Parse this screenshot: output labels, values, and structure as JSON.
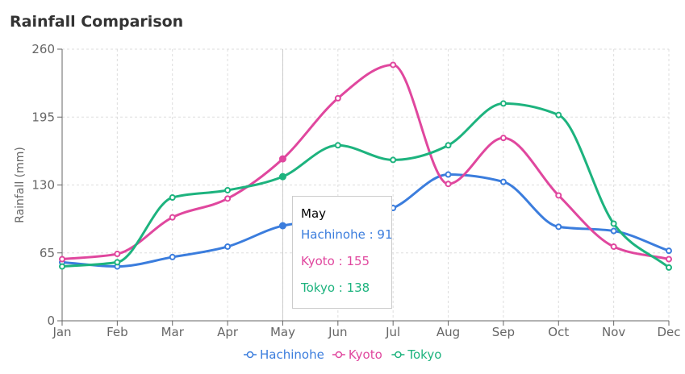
{
  "chart_data": {
    "type": "line",
    "title": "Rainfall Comparison",
    "xlabel": "",
    "ylabel": "Rainfall (mm)",
    "categories": [
      "Jan",
      "Feb",
      "Mar",
      "Apr",
      "May",
      "Jun",
      "Jul",
      "Aug",
      "Sep",
      "Oct",
      "Nov",
      "Dec"
    ],
    "ylim": [
      0,
      260
    ],
    "yticks": [
      0,
      65,
      130,
      195,
      260
    ],
    "grid": true,
    "legend_position": "bottom",
    "smooth": true,
    "series": [
      {
        "name": "Hachinohe",
        "color": "#3b7ddd",
        "values": [
          56,
          52,
          61,
          71,
          91,
          97,
          108,
          140,
          133,
          90,
          86,
          67
        ]
      },
      {
        "name": "Kyoto",
        "color": "#e0479e",
        "values": [
          59,
          64,
          99,
          117,
          155,
          213,
          245,
          131,
          175,
          120,
          71,
          59
        ]
      },
      {
        "name": "Tokyo",
        "color": "#1db37e",
        "values": [
          52,
          56,
          118,
          125,
          138,
          168,
          154,
          168,
          208,
          197,
          93,
          51
        ]
      }
    ],
    "tooltip": {
      "title": "May",
      "rows": [
        "Hachinohe : 91",
        "Kyoto : 155",
        "Tokyo : 138"
      ]
    }
  }
}
